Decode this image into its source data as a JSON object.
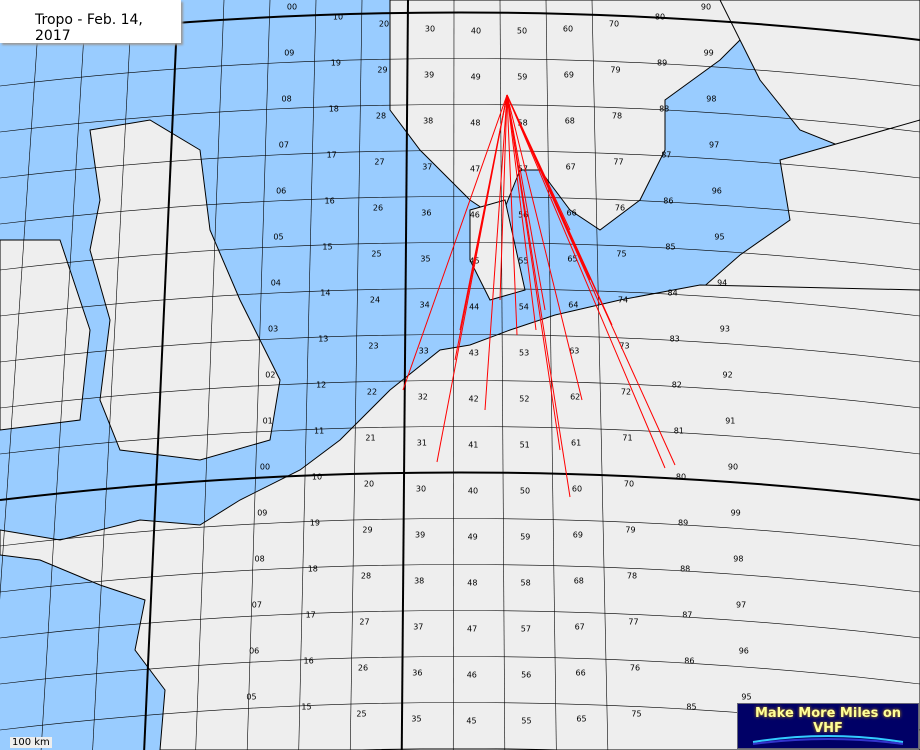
{
  "title": "Tropo - Feb. 14, 2017",
  "scale_label": "100 km",
  "logo_text": "Make More Miles on VHF",
  "colors": {
    "sea": "#99ccff",
    "land": "#eeeeee",
    "grid": "#000000",
    "paths": "#ff0000",
    "logo_bg": "#000066"
  },
  "grid_labels": [
    [
      "00",
      "10",
      "20",
      "30",
      "40",
      "50",
      "60",
      "70",
      "80",
      "90"
    ],
    [
      "09",
      "19",
      "29",
      "39",
      "49",
      "59",
      "69",
      "79",
      "89",
      "99"
    ],
    [
      "08",
      "18",
      "28",
      "38",
      "48",
      "58",
      "68",
      "78",
      "88",
      "98"
    ],
    [
      "07",
      "17",
      "27",
      "37",
      "47",
      "57",
      "67",
      "77",
      "87",
      "97"
    ],
    [
      "06",
      "16",
      "26",
      "36",
      "46",
      "56",
      "66",
      "76",
      "86",
      "96"
    ],
    [
      "05",
      "15",
      "25",
      "35",
      "45",
      "55",
      "65",
      "75",
      "85",
      "95"
    ],
    [
      "04",
      "14",
      "24",
      "34",
      "44",
      "54",
      "64",
      "74",
      "84",
      "94"
    ],
    [
      "03",
      "13",
      "23",
      "33",
      "43",
      "53",
      "63",
      "73",
      "83",
      "93"
    ],
    [
      "02",
      "12",
      "22",
      "32",
      "42",
      "52",
      "62",
      "72",
      "82",
      "92"
    ],
    [
      "01",
      "11",
      "21",
      "31",
      "41",
      "51",
      "61",
      "71",
      "81",
      "91"
    ],
    [
      "00",
      "10",
      "20",
      "30",
      "40",
      "50",
      "60",
      "70",
      "80",
      "90"
    ],
    [
      "09",
      "19",
      "29",
      "39",
      "49",
      "59",
      "69",
      "79",
      "89",
      "99"
    ],
    [
      "08",
      "18",
      "28",
      "38",
      "48",
      "58",
      "68",
      "78",
      "88",
      "98"
    ],
    [
      "07",
      "17",
      "27",
      "37",
      "47",
      "57",
      "67",
      "77",
      "87",
      "97"
    ],
    [
      "06",
      "16",
      "26",
      "36",
      "46",
      "56",
      "66",
      "76",
      "86",
      "96"
    ],
    [
      "05",
      "15",
      "25",
      "35",
      "45",
      "55",
      "65",
      "75",
      "85",
      "95"
    ]
  ]
}
